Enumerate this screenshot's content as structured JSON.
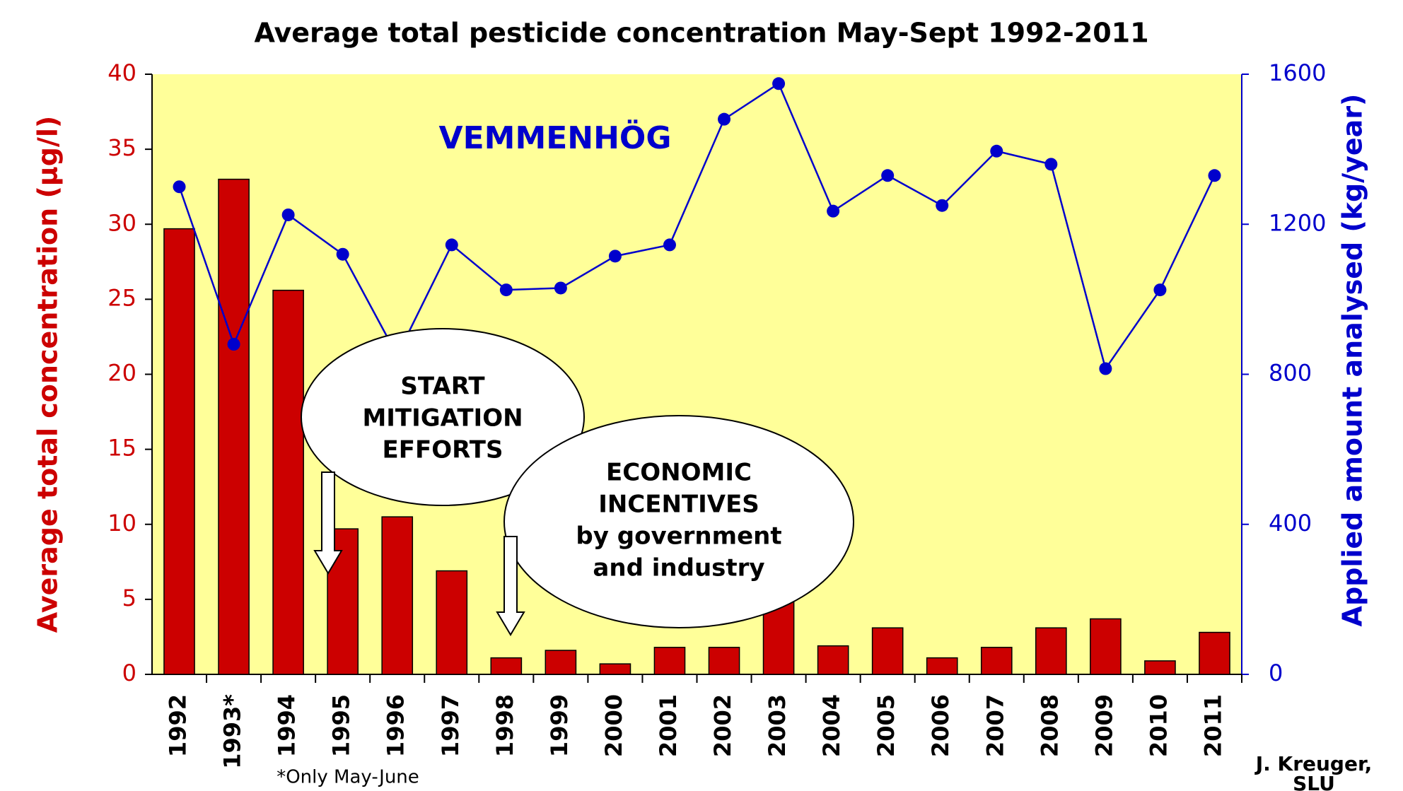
{
  "chart_data": {
    "type": "combo",
    "title": "Average total pesticide concentration May-Sept 1992-2011",
    "y_label": "Average total concentration (µg/l)",
    "y2_label": "Applied amount analysed (kg/year)",
    "categories": [
      "1992",
      "1993*",
      "1994",
      "1995",
      "1996",
      "1997",
      "1998",
      "1999",
      "2000",
      "2001",
      "2002",
      "2003",
      "2004",
      "2005",
      "2006",
      "2007",
      "2008",
      "2009",
      "2010",
      "2011"
    ],
    "series": [
      {
        "type": "bar",
        "axis": "y",
        "color": "#cc0000",
        "values": [
          29.7,
          33,
          25.6,
          9.7,
          10.5,
          6.9,
          1.1,
          1.6,
          0.7,
          1.8,
          1.8,
          5,
          1.9,
          3.1,
          1.1,
          1.8,
          3.1,
          3.7,
          0.9,
          2.8
        ]
      },
      {
        "type": "line",
        "axis": "y2",
        "color": "#0000cc",
        "values": [
          1300,
          880,
          1225,
          1120,
          850,
          1145,
          1025,
          1030,
          1115,
          1145,
          1480,
          1575,
          1235,
          1330,
          1250,
          1395,
          1360,
          815,
          1025,
          1330
        ]
      }
    ],
    "ylim": [
      0,
      40
    ],
    "yticks": [
      0,
      5,
      10,
      15,
      20,
      25,
      30,
      35,
      40
    ],
    "y2lim": [
      0,
      1600
    ],
    "y2ticks": [
      0,
      400,
      800,
      1200,
      1600
    ],
    "annotations": {
      "site": "VEMMENHÖG",
      "mitigation": [
        "START",
        "MITIGATION",
        "EFFORTS"
      ],
      "incentives": [
        "ECONOMIC",
        "INCENTIVES",
        "by government",
        "and industry"
      ],
      "note": "*Only May-June",
      "credit": [
        "J. Kreuger,",
        "SLU"
      ]
    }
  }
}
